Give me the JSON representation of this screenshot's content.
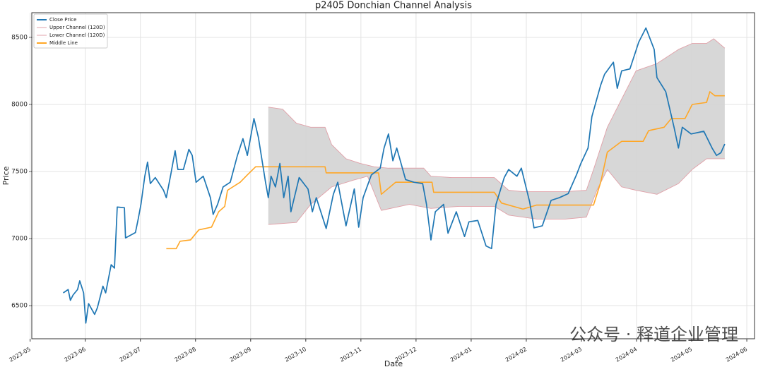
{
  "chart_data": {
    "type": "line",
    "title": "p2405 Donchian Channel Analysis",
    "xlabel": "Date",
    "ylabel": "Price",
    "xlim": [
      0.03,
      13.14
    ],
    "ylim": [
      6253,
      8684
    ],
    "yticks": [
      6500,
      7000,
      7500,
      8000,
      8500
    ],
    "xticks": [
      {
        "value": 0,
        "label": "2023-05"
      },
      {
        "value": 1,
        "label": "2023-06"
      },
      {
        "value": 2,
        "label": "2023-07"
      },
      {
        "value": 3,
        "label": "2023-08"
      },
      {
        "value": 4,
        "label": "2023-09"
      },
      {
        "value": 5,
        "label": "2023-10"
      },
      {
        "value": 6,
        "label": "2023-11"
      },
      {
        "value": 7,
        "label": "2023-12"
      },
      {
        "value": 8,
        "label": "2024-01"
      },
      {
        "value": 9,
        "label": "2024-02"
      },
      {
        "value": 10,
        "label": "2024-03"
      },
      {
        "value": 11,
        "label": "2024-04"
      },
      {
        "value": 12,
        "label": "2024-05"
      },
      {
        "value": 13,
        "label": "2024-06"
      }
    ],
    "grid": true,
    "legend": "upper-left",
    "channel_fill": "#d3d3d3",
    "annotation": "公众号 · 释道企业管理",
    "series": [
      {
        "name": "Close Price",
        "color": "#1f77b4",
        "x": [
          0.6,
          0.69,
          0.73,
          0.78,
          0.86,
          0.9,
          0.97,
          1.01,
          1.06,
          1.17,
          1.22,
          1.32,
          1.37,
          1.47,
          1.53,
          1.58,
          1.71,
          1.73,
          1.91,
          1.96,
          2.01,
          2.08,
          2.13,
          2.18,
          2.27,
          2.42,
          2.47,
          2.55,
          2.63,
          2.68,
          2.78,
          2.88,
          2.94,
          3.01,
          3.14,
          3.27,
          3.32,
          3.4,
          3.5,
          3.63,
          3.76,
          3.86,
          3.94,
          4.01,
          4.06,
          4.14,
          4.27,
          4.32,
          4.37,
          4.45,
          4.53,
          4.6,
          4.68,
          4.73,
          4.88,
          5.04,
          5.12,
          5.19,
          5.37,
          5.5,
          5.58,
          5.73,
          5.88,
          5.96,
          6.04,
          6.19,
          6.35,
          6.42,
          6.5,
          6.58,
          6.65,
          6.81,
          6.96,
          7.12,
          7.19,
          7.27,
          7.35,
          7.5,
          7.58,
          7.73,
          7.88,
          7.96,
          8.12,
          8.27,
          8.37,
          8.45,
          8.6,
          8.68,
          8.83,
          8.91,
          9.06,
          9.14,
          9.29,
          9.45,
          9.6,
          9.76,
          9.91,
          9.99,
          10.12,
          10.19,
          10.35,
          10.42,
          10.58,
          10.65,
          10.73,
          10.88,
          11.04,
          11.17,
          11.32,
          11.37,
          11.53,
          11.68,
          11.76,
          11.83,
          11.99,
          12.22,
          12.37,
          12.45,
          12.53,
          12.6
        ],
        "values": [
          6595,
          6620,
          6540,
          6580,
          6620,
          6685,
          6595,
          6370,
          6515,
          6435,
          6485,
          6645,
          6595,
          6805,
          6780,
          7235,
          7230,
          7005,
          7045,
          7145,
          7255,
          7465,
          7570,
          7410,
          7455,
          7360,
          7305,
          7475,
          7655,
          7515,
          7515,
          7665,
          7620,
          7420,
          7465,
          7305,
          7180,
          7255,
          7385,
          7420,
          7620,
          7745,
          7620,
          7780,
          7895,
          7755,
          7420,
          7305,
          7465,
          7385,
          7560,
          7305,
          7465,
          7200,
          7455,
          7370,
          7200,
          7305,
          7075,
          7330,
          7420,
          7095,
          7370,
          7085,
          7305,
          7475,
          7525,
          7675,
          7780,
          7580,
          7675,
          7440,
          7420,
          7410,
          7255,
          6990,
          7200,
          7255,
          7040,
          7200,
          7015,
          7125,
          7135,
          6945,
          6925,
          7255,
          7455,
          7515,
          7465,
          7525,
          7275,
          7080,
          7095,
          7285,
          7305,
          7335,
          7475,
          7560,
          7675,
          7910,
          8145,
          8225,
          8315,
          8120,
          8250,
          8265,
          8465,
          8570,
          8410,
          8200,
          8095,
          7830,
          7675,
          7830,
          7780,
          7800,
          7675,
          7620,
          7640,
          7705
        ]
      },
      {
        "name": "Upper Channel (120D)",
        "color": "#e0a0a8",
        "x": [
          4.32,
          4.58,
          4.83,
          5.09,
          5.35,
          5.47,
          5.73,
          5.99,
          6.24,
          6.5,
          7.14,
          7.27,
          7.65,
          8.42,
          8.68,
          8.94,
          9.71,
          10.09,
          10.22,
          10.47,
          10.73,
          10.99,
          11.37,
          11.76,
          12.01,
          12.27,
          12.4,
          12.6
        ],
        "values": [
          7980,
          7965,
          7860,
          7830,
          7830,
          7700,
          7595,
          7560,
          7535,
          7525,
          7525,
          7465,
          7455,
          7455,
          7360,
          7350,
          7350,
          7360,
          7515,
          7830,
          8040,
          8250,
          8305,
          8410,
          8455,
          8455,
          8490,
          8420
        ]
      },
      {
        "name": "Lower Channel (120D)",
        "color": "#e0a0a8",
        "x": [
          4.32,
          4.83,
          5.09,
          5.47,
          5.86,
          6.12,
          6.37,
          6.88,
          7.27,
          7.78,
          8.42,
          8.68,
          9.19,
          9.71,
          10.09,
          10.28,
          10.47,
          10.73,
          10.99,
          11.37,
          11.76,
          12.01,
          12.27,
          12.6
        ],
        "values": [
          7105,
          7120,
          7255,
          7385,
          7435,
          7465,
          7210,
          7255,
          7225,
          7240,
          7240,
          7175,
          7145,
          7145,
          7160,
          7360,
          7515,
          7385,
          7360,
          7330,
          7410,
          7515,
          7595,
          7595
        ]
      },
      {
        "name": "Middle Line",
        "color": "#ffa726",
        "x": [
          2.47,
          2.65,
          2.72,
          2.91,
          3.06,
          3.29,
          3.42,
          3.53,
          3.58,
          3.81,
          3.94,
          4.09,
          5.35,
          5.37,
          6.32,
          6.37,
          6.63,
          7.29,
          7.32,
          8.42,
          8.55,
          8.94,
          9.19,
          10.22,
          10.35,
          10.47,
          10.73,
          11.12,
          11.22,
          11.5,
          11.63,
          11.88,
          12.01,
          12.27,
          12.33,
          12.42,
          12.6
        ],
        "values": [
          6925,
          6925,
          6980,
          6990,
          7065,
          7085,
          7200,
          7240,
          7360,
          7420,
          7475,
          7535,
          7535,
          7490,
          7490,
          7330,
          7420,
          7420,
          7345,
          7345,
          7265,
          7220,
          7250,
          7250,
          7420,
          7645,
          7725,
          7725,
          7805,
          7830,
          7895,
          7895,
          8000,
          8015,
          8095,
          8065,
          8065
        ]
      }
    ]
  }
}
